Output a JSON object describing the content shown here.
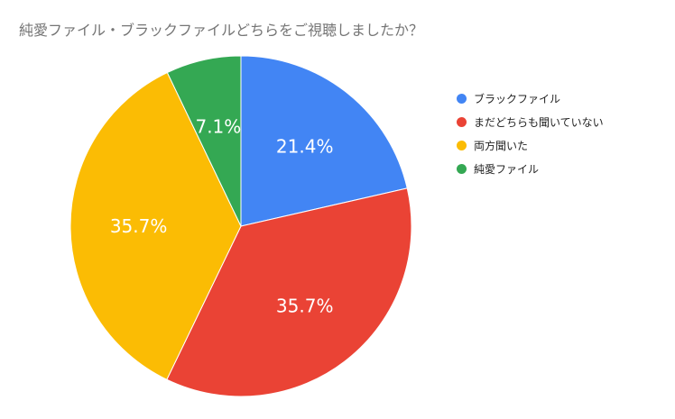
{
  "chart_data": {
    "type": "pie",
    "title": "純愛ファイル・ブラックファイルどちらをご視聴しましたか？",
    "categories": [
      "ブラックファイル",
      "まだどちらも聞いていない",
      "両方聞いた",
      "純愛ファイル"
    ],
    "values": [
      21.4,
      35.7,
      35.7,
      7.1
    ],
    "data_labels": [
      "21.4%",
      "35.7%",
      "35.7%",
      "7.1%"
    ],
    "colors": [
      "#4285F4",
      "#EA4335",
      "#FBBC04",
      "#34A853"
    ],
    "legend_position": "right",
    "start_angle_deg": 0,
    "direction": "clockwise"
  }
}
